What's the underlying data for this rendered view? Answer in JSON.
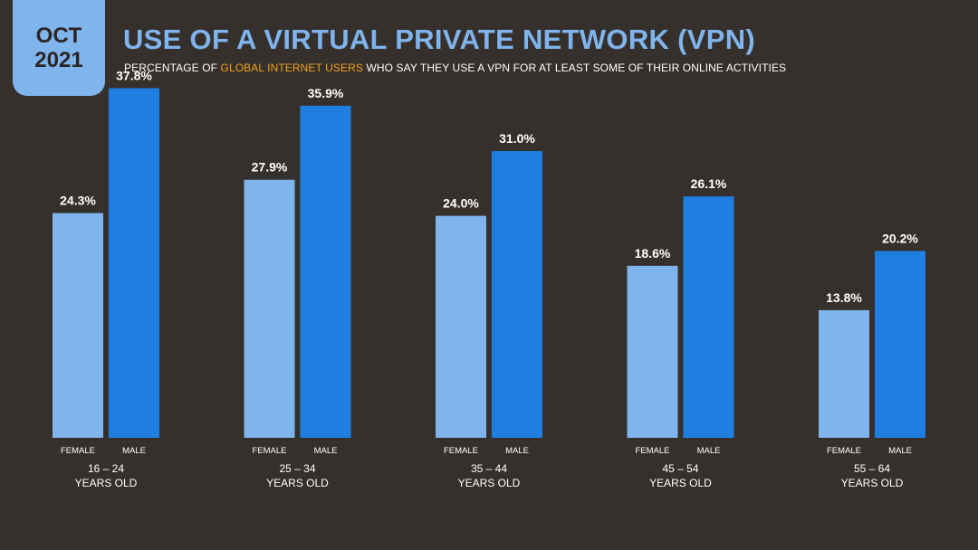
{
  "badge": {
    "month": "OCT",
    "year": "2021"
  },
  "header": {
    "title": "USE OF A VIRTUAL PRIVATE NETWORK (VPN)",
    "subtitle_pre": "PERCENTAGE OF ",
    "subtitle_highlight": "GLOBAL INTERNET USERS",
    "subtitle_post": " WHO SAY THEY USE A VPN FOR AT LEAST SOME OF THEIR ONLINE ACTIVITIES"
  },
  "colors": {
    "background": "#36302d",
    "female": "#7fb4ec",
    "male": "#1f7fe0",
    "highlight": "#f0a21d",
    "text": "#ffffff"
  },
  "chart_data": {
    "type": "bar",
    "title": "USE OF A VIRTUAL PRIVATE NETWORK (VPN)",
    "subtitle": "PERCENTAGE OF GLOBAL INTERNET USERS WHO SAY THEY USE A VPN FOR AT LEAST SOME OF THEIR ONLINE ACTIVITIES",
    "categories": [
      {
        "range": "16 – 24",
        "sub": "YEARS OLD"
      },
      {
        "range": "25 – 34",
        "sub": "YEARS OLD"
      },
      {
        "range": "35 – 44",
        "sub": "YEARS OLD"
      },
      {
        "range": "45 – 54",
        "sub": "YEARS OLD"
      },
      {
        "range": "55 – 64",
        "sub": "YEARS OLD"
      }
    ],
    "series": [
      {
        "name": "FEMALE",
        "values": [
          24.3,
          27.9,
          24.0,
          18.6,
          13.8
        ],
        "labels": [
          "24.3%",
          "27.9%",
          "24.0%",
          "18.6%",
          "13.8%"
        ]
      },
      {
        "name": "MALE",
        "values": [
          37.8,
          35.9,
          31.0,
          26.1,
          20.2
        ],
        "labels": [
          "37.8%",
          "35.9%",
          "31.0%",
          "26.1%",
          "20.2%"
        ]
      }
    ],
    "ylim": [
      0,
      40
    ],
    "grid": false,
    "legend": "none"
  }
}
